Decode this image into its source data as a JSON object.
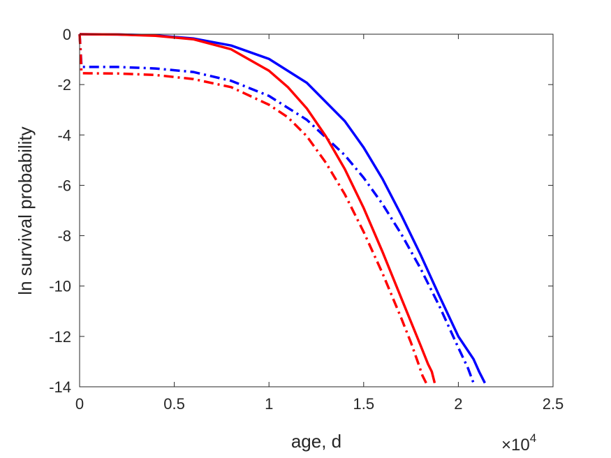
{
  "chart_data": {
    "type": "line",
    "title": "",
    "xlabel": "age, d",
    "ylabel": "ln survival probability",
    "xlim": [
      0,
      25000
    ],
    "ylim": [
      -14,
      0
    ],
    "x_tick_values": [
      0,
      5000,
      10000,
      15000,
      20000,
      25000
    ],
    "x_tick_labels": [
      "0",
      "0.5",
      "1",
      "1.5",
      "2",
      "2.5"
    ],
    "x_exponent_label": "×10",
    "x_exponent_power": "4",
    "y_tick_values": [
      0,
      -2,
      -4,
      -6,
      -8,
      -10,
      -12,
      -14
    ],
    "y_tick_labels": [
      "0",
      "-2",
      "-4",
      "-6",
      "-8",
      "-10",
      "-12",
      "-14"
    ],
    "grid": false,
    "legend": "none",
    "series": [
      {
        "color": "#0000ff",
        "style": "solid",
        "points": [
          [
            0,
            0
          ],
          [
            2000,
            -0.01
          ],
          [
            4000,
            -0.05
          ],
          [
            6000,
            -0.17
          ],
          [
            8000,
            -0.45
          ],
          [
            10000,
            -0.98
          ],
          [
            12000,
            -1.93
          ],
          [
            14000,
            -3.45
          ],
          [
            15000,
            -4.5
          ],
          [
            16000,
            -5.75
          ],
          [
            17000,
            -7.2
          ],
          [
            18000,
            -8.75
          ],
          [
            19000,
            -10.4
          ],
          [
            20000,
            -12.0
          ],
          [
            20800,
            -12.9
          ],
          [
            21100,
            -13.4
          ],
          [
            21400,
            -13.85
          ]
        ]
      },
      {
        "color": "#0000ff",
        "style": "dashdot",
        "points": [
          [
            0,
            0
          ],
          [
            50,
            -0.6
          ],
          [
            100,
            -1.3
          ],
          [
            2000,
            -1.3
          ],
          [
            4000,
            -1.36
          ],
          [
            6000,
            -1.5
          ],
          [
            8000,
            -1.85
          ],
          [
            10000,
            -2.45
          ],
          [
            12000,
            -3.4
          ],
          [
            14000,
            -4.8
          ],
          [
            15000,
            -5.7
          ],
          [
            16000,
            -6.75
          ],
          [
            17000,
            -7.95
          ],
          [
            18000,
            -9.3
          ],
          [
            19000,
            -10.8
          ],
          [
            20000,
            -12.45
          ],
          [
            20500,
            -13.25
          ],
          [
            20800,
            -13.85
          ]
        ]
      },
      {
        "color": "#ff0000",
        "style": "solid",
        "points": [
          [
            0,
            0
          ],
          [
            2000,
            -0.01
          ],
          [
            4000,
            -0.06
          ],
          [
            6000,
            -0.2
          ],
          [
            8000,
            -0.6
          ],
          [
            10000,
            -1.45
          ],
          [
            11000,
            -2.1
          ],
          [
            12000,
            -2.95
          ],
          [
            13000,
            -4.05
          ],
          [
            14000,
            -5.35
          ],
          [
            15000,
            -6.9
          ],
          [
            16000,
            -8.65
          ],
          [
            17000,
            -10.5
          ],
          [
            18000,
            -12.35
          ],
          [
            18400,
            -13.1
          ],
          [
            18600,
            -13.4
          ],
          [
            18750,
            -13.85
          ]
        ]
      },
      {
        "color": "#ff0000",
        "style": "dashdot",
        "points": [
          [
            0,
            0
          ],
          [
            50,
            -0.7
          ],
          [
            100,
            -1.55
          ],
          [
            2000,
            -1.56
          ],
          [
            4000,
            -1.62
          ],
          [
            6000,
            -1.78
          ],
          [
            8000,
            -2.1
          ],
          [
            10000,
            -2.8
          ],
          [
            11000,
            -3.3
          ],
          [
            12000,
            -4.05
          ],
          [
            13000,
            -5.1
          ],
          [
            14000,
            -6.35
          ],
          [
            15000,
            -7.85
          ],
          [
            16000,
            -9.5
          ],
          [
            17000,
            -11.3
          ],
          [
            17500,
            -12.25
          ],
          [
            17900,
            -13.1
          ],
          [
            18100,
            -13.55
          ],
          [
            18300,
            -13.85
          ]
        ]
      }
    ]
  }
}
